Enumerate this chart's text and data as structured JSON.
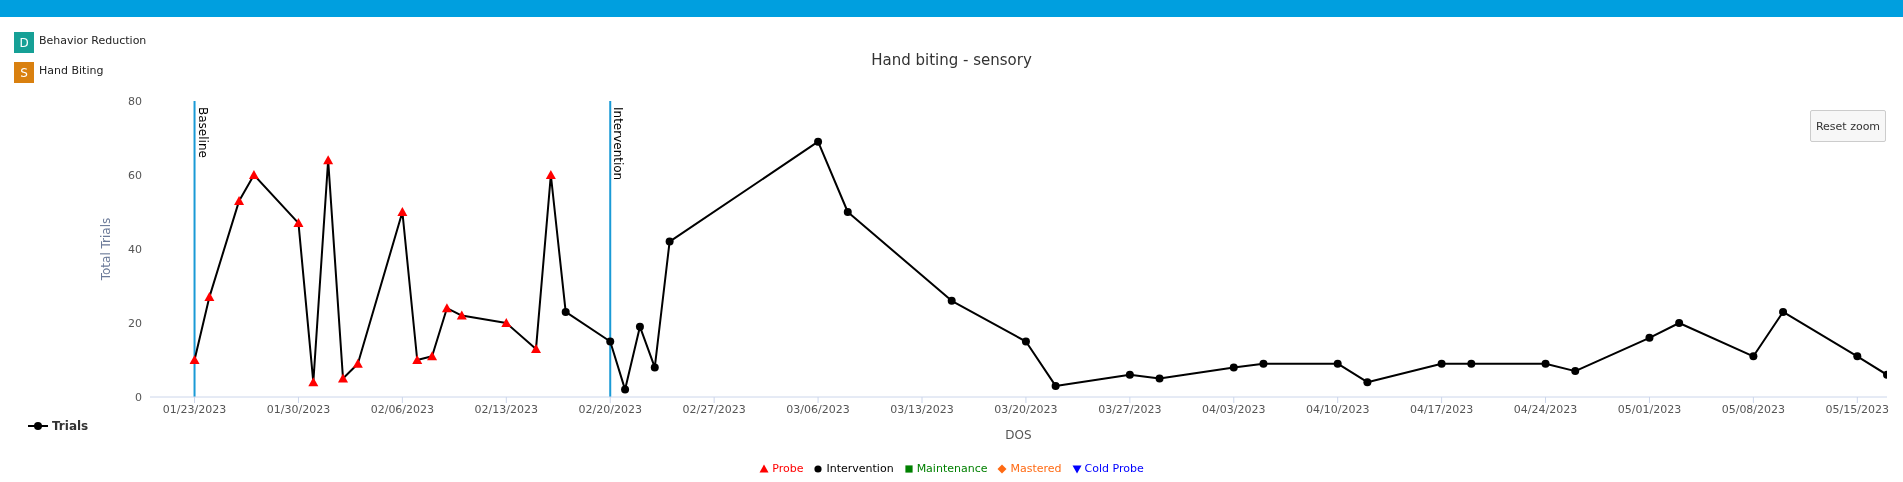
{
  "chart_data": {
    "type": "line",
    "title": "Hand biting - sensory",
    "xlabel": "DOS",
    "ylabel": "Total Trials",
    "annotations": [
      "D",
      "Behavior Reduction",
      "S",
      "Hand Biting",
      "Reset zoom"
    ],
    "xlim": [
      "2023-01-20",
      "2023-05-17"
    ],
    "xticks": [
      {
        "value": "2023-01-23",
        "label": "01/23/2023"
      },
      {
        "value": "2023-01-30",
        "label": "01/30/2023"
      },
      {
        "value": "2023-02-06",
        "label": "02/06/2023"
      },
      {
        "value": "2023-02-13",
        "label": "02/13/2023"
      },
      {
        "value": "2023-02-20",
        "label": "02/20/2023"
      },
      {
        "value": "2023-02-27",
        "label": "02/27/2023"
      },
      {
        "value": "2023-03-06",
        "label": "03/06/2023"
      },
      {
        "value": "2023-03-13",
        "label": "03/13/2023"
      },
      {
        "value": "2023-03-20",
        "label": "03/20/2023"
      },
      {
        "value": "2023-03-27",
        "label": "03/27/2023"
      },
      {
        "value": "2023-04-03",
        "label": "04/03/2023"
      },
      {
        "value": "2023-04-10",
        "label": "04/10/2023"
      },
      {
        "value": "2023-04-17",
        "label": "04/17/2023"
      },
      {
        "value": "2023-04-24",
        "label": "04/24/2023"
      },
      {
        "value": "2023-05-01",
        "label": "05/01/2023"
      },
      {
        "value": "2023-05-08",
        "label": "05/08/2023"
      },
      {
        "value": "2023-05-15",
        "label": "05/15/2023"
      }
    ],
    "ylim": [
      0,
      80
    ],
    "yticks": [
      0,
      20,
      40,
      60,
      80
    ],
    "grid": false,
    "legend": "bottom",
    "ref_lines": [
      {
        "axis": "x",
        "value": "2023-01-23",
        "label": "Baseline",
        "color": "#1a9ad6"
      },
      {
        "axis": "x",
        "value": "2023-02-20",
        "label": "Intervention",
        "color": "#1a9ad6"
      }
    ],
    "series": [
      {
        "name": "Trials",
        "color": "#000000",
        "marker": "none",
        "x": [
          "2023-01-23",
          "2023-01-24",
          "2023-01-26",
          "2023-01-27",
          "2023-01-30",
          "2023-01-31",
          "2023-02-01",
          "2023-02-02",
          "2023-02-03",
          "2023-02-06",
          "2023-02-07",
          "2023-02-08",
          "2023-02-09",
          "2023-02-10",
          "2023-02-13",
          "2023-02-15",
          "2023-02-16",
          "2023-02-17",
          "2023-02-20",
          "2023-02-21",
          "2023-02-22",
          "2023-02-23",
          "2023-02-24",
          "2023-03-06",
          "2023-03-08",
          "2023-03-15",
          "2023-03-20",
          "2023-03-22",
          "2023-03-27",
          "2023-03-29",
          "2023-04-03",
          "2023-04-05",
          "2023-04-10",
          "2023-04-12",
          "2023-04-17",
          "2023-04-19",
          "2023-04-24",
          "2023-04-26",
          "2023-05-01",
          "2023-05-03",
          "2023-05-08",
          "2023-05-10",
          "2023-05-15",
          "2023-05-17"
        ],
        "values": [
          10,
          27,
          53,
          60,
          47,
          4,
          64,
          5,
          9,
          50,
          10,
          11,
          24,
          22,
          20,
          13,
          60,
          23,
          15,
          2,
          19,
          8,
          42,
          69,
          50,
          26,
          15,
          3,
          6,
          5,
          8,
          9,
          9,
          4,
          9,
          9,
          9,
          7,
          16,
          20,
          11,
          23,
          11,
          6
        ]
      },
      {
        "name": "Probe",
        "type": "scatter",
        "color": "#ff0000",
        "marker": "triangle",
        "x": [
          "2023-01-23",
          "2023-01-24",
          "2023-01-26",
          "2023-01-27",
          "2023-01-30",
          "2023-01-31",
          "2023-02-01",
          "2023-02-02",
          "2023-02-03",
          "2023-02-06",
          "2023-02-07",
          "2023-02-08",
          "2023-02-09",
          "2023-02-10",
          "2023-02-13",
          "2023-02-15",
          "2023-02-16"
        ],
        "values": [
          10,
          27,
          53,
          60,
          47,
          4,
          64,
          5,
          9,
          50,
          10,
          11,
          24,
          22,
          20,
          13,
          60
        ]
      },
      {
        "name": "Intervention",
        "type": "scatter",
        "color": "#000000",
        "marker": "circle",
        "x": [
          "2023-02-17",
          "2023-02-20",
          "2023-02-21",
          "2023-02-22",
          "2023-02-23",
          "2023-02-24",
          "2023-03-06",
          "2023-03-08",
          "2023-03-15",
          "2023-03-20",
          "2023-03-22",
          "2023-03-27",
          "2023-03-29",
          "2023-04-03",
          "2023-04-05",
          "2023-04-10",
          "2023-04-12",
          "2023-04-17",
          "2023-04-19",
          "2023-04-24",
          "2023-04-26",
          "2023-05-01",
          "2023-05-03",
          "2023-05-08",
          "2023-05-10",
          "2023-05-15",
          "2023-05-17"
        ],
        "values": [
          23,
          15,
          2,
          19,
          8,
          42,
          69,
          50,
          26,
          15,
          3,
          6,
          5,
          8,
          9,
          9,
          4,
          9,
          9,
          9,
          7,
          16,
          20,
          11,
          23,
          11,
          6
        ]
      },
      {
        "name": "Maintenance",
        "type": "scatter",
        "color": "#008000",
        "marker": "square"
      },
      {
        "name": "Mastered",
        "type": "scatter",
        "color": "#ff6a13",
        "marker": "diamond"
      },
      {
        "name": "Cold Probe",
        "type": "scatter",
        "color": "#0000ff",
        "marker": "triangle-down"
      }
    ]
  }
}
